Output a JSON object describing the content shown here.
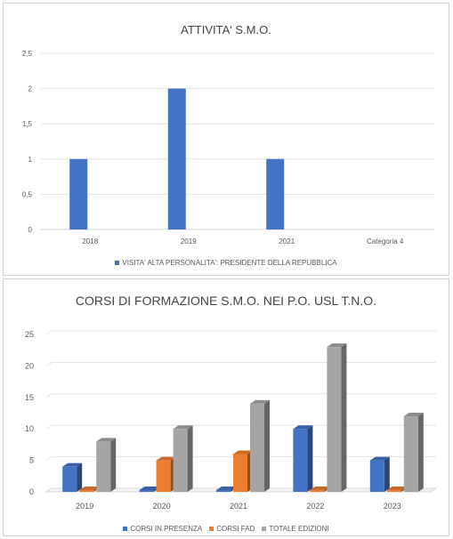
{
  "chart_data": [
    {
      "type": "bar",
      "title": "ATTIVITA' S.M.O.",
      "categories": [
        "2018",
        "2019",
        "2021",
        "Categoria 4"
      ],
      "series": [
        {
          "name": "VISITA' ALTA PERSONALITA': PRESIDENTE DELLA REPUBBLICA",
          "values": [
            1,
            2,
            1,
            null
          ],
          "color": "#4472c4"
        }
      ],
      "yticks": [
        "0",
        "0,5",
        "1",
        "1,5",
        "2",
        "2,5"
      ],
      "ylim": [
        0,
        2.5
      ],
      "grid": true,
      "legend": "bottom"
    },
    {
      "type": "bar",
      "title": "CORSI DI FORMAZIONE S.M.O. NEI P.O. USL T.N.O.",
      "categories": [
        "2019",
        "2020",
        "2021",
        "2022",
        "2023"
      ],
      "series": [
        {
          "name": "CORSI IN PRESENZA",
          "values": [
            4,
            0,
            0,
            10,
            5
          ],
          "color": "#4472c4"
        },
        {
          "name": "CORSI FAD",
          "values": [
            0,
            5,
            6,
            0,
            0
          ],
          "color": "#ed7d31"
        },
        {
          "name": "TOTALE EDIZIONI",
          "values": [
            8,
            10,
            14,
            23,
            12
          ],
          "color": "#a5a5a5"
        }
      ],
      "yticks": [
        "0",
        "5",
        "10",
        "15",
        "20",
        "25"
      ],
      "ylim": [
        0,
        25
      ],
      "grid": true,
      "legend": "bottom"
    }
  ]
}
